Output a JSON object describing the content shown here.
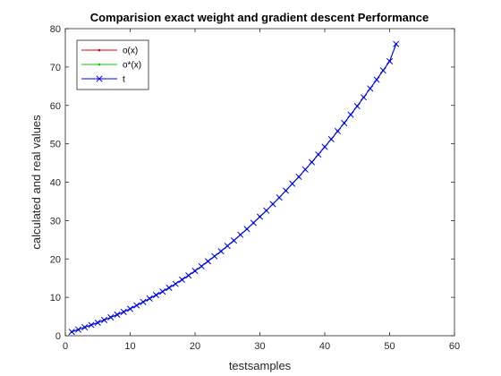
{
  "chart_data": {
    "type": "line",
    "title": "Comparision exact weight and gradient descent Performance",
    "xlabel": "testsamples",
    "ylabel": "calculated and real values",
    "xlim": [
      0,
      60
    ],
    "ylim": [
      0,
      80
    ],
    "xticks": [
      0,
      10,
      20,
      30,
      40,
      50,
      60
    ],
    "yticks": [
      0,
      10,
      20,
      30,
      40,
      50,
      60,
      70,
      80
    ],
    "grid": false,
    "legend_position": "top-left",
    "x": [
      1,
      2,
      3,
      4,
      5,
      6,
      7,
      8,
      9,
      10,
      11,
      12,
      13,
      14,
      15,
      16,
      17,
      18,
      19,
      20,
      21,
      22,
      23,
      24,
      25,
      26,
      27,
      28,
      29,
      30,
      31,
      32,
      33,
      34,
      35,
      36,
      37,
      38,
      39,
      40,
      41,
      42,
      43,
      44,
      45,
      46,
      47,
      48,
      49,
      50,
      51
    ],
    "series": [
      {
        "name": "o(x)",
        "color": "#d00000",
        "marker": "dot",
        "values": [
          1.0,
          1.6,
          2.2,
          2.8,
          3.4,
          4.1,
          4.8,
          5.5,
          6.2,
          7.0,
          7.9,
          8.8,
          9.7,
          10.6,
          11.5,
          12.5,
          13.5,
          14.6,
          15.7,
          16.9,
          18.1,
          19.4,
          20.7,
          22.0,
          23.4,
          24.8,
          26.3,
          27.8,
          29.4,
          31.0,
          32.6,
          34.3,
          36.0,
          37.8,
          39.6,
          41.4,
          43.3,
          45.2,
          47.2,
          49.2,
          51.2,
          53.3,
          55.4,
          57.6,
          59.8,
          62.1,
          64.4,
          66.7,
          69.1,
          71.5,
          76.0
        ]
      },
      {
        "name": "o*(x)",
        "color": "#00cc00",
        "marker": "dot",
        "values": [
          1.0,
          1.6,
          2.2,
          2.8,
          3.4,
          4.1,
          4.8,
          5.5,
          6.2,
          7.0,
          7.9,
          8.8,
          9.7,
          10.6,
          11.5,
          12.5,
          13.5,
          14.6,
          15.7,
          16.9,
          18.1,
          19.4,
          20.7,
          22.0,
          23.4,
          24.8,
          26.3,
          27.8,
          29.4,
          31.0,
          32.6,
          34.3,
          36.0,
          37.8,
          39.6,
          41.4,
          43.3,
          45.2,
          47.2,
          49.2,
          51.2,
          53.3,
          55.4,
          57.6,
          59.8,
          62.1,
          64.4,
          66.7,
          69.1,
          71.5,
          76.0
        ]
      },
      {
        "name": "t",
        "color": "#0000ff",
        "marker": "x",
        "values": [
          1.0,
          1.6,
          2.2,
          2.8,
          3.4,
          4.1,
          4.8,
          5.5,
          6.2,
          7.0,
          7.9,
          8.8,
          9.7,
          10.6,
          11.5,
          12.5,
          13.5,
          14.6,
          15.7,
          16.9,
          18.1,
          19.4,
          20.7,
          22.0,
          23.4,
          24.8,
          26.3,
          27.8,
          29.4,
          31.0,
          32.6,
          34.3,
          36.0,
          37.8,
          39.6,
          41.4,
          43.3,
          45.2,
          47.2,
          49.2,
          51.2,
          53.3,
          55.4,
          57.6,
          59.8,
          62.1,
          64.4,
          66.7,
          69.1,
          71.5,
          76.0
        ]
      }
    ]
  }
}
